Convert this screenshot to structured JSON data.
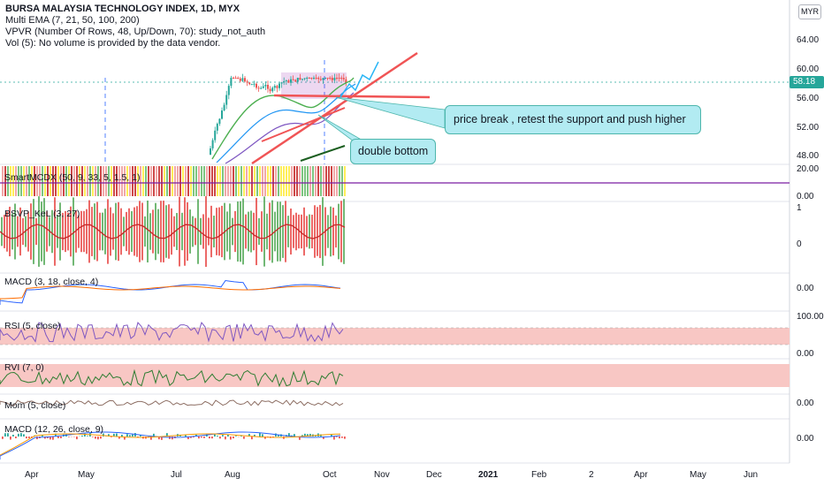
{
  "header": {
    "symbol_line": "BURSA MALAYSIA TECHNOLOGY INDEX, 1D, MYX",
    "indicators": [
      "Multi EMA (7, 21, 50, 100, 200)",
      "VPVR (Number Of Rows, 48, Up/Down, 70): study_not_auth",
      "Vol (5): No volume is provided by the data vendor."
    ]
  },
  "currency": "MYR",
  "last_price": "58.18",
  "price_axis": [
    "64.00",
    "60.00",
    "56.00",
    "52.00",
    "48.00"
  ],
  "panes": [
    {
      "name": "SmartMCDX (50, 9, 33, 5, 1.5, 1)",
      "axis": [
        "20.00",
        "0.00"
      ]
    },
    {
      "name": "BSVP_KeL (3, 27)",
      "axis": [
        "1",
        "0"
      ]
    },
    {
      "name": "MACD (3, 18, close, 4)",
      "axis": [
        "0.00"
      ]
    },
    {
      "name": "RSI (5, close)",
      "axis": [
        "100.00",
        "0.00"
      ]
    },
    {
      "name": "RVI (7, 0)",
      "axis": []
    },
    {
      "name": "Mom (5, close)",
      "axis": [
        "0.00"
      ]
    },
    {
      "name": "MACD (12, 26, close, 9)",
      "axis": [
        "0.00"
      ]
    }
  ],
  "time_axis": [
    "Apr",
    "May",
    "Jul",
    "Aug",
    "Oct",
    "Nov",
    "Dec",
    "2021",
    "Feb",
    "2",
    "Apr",
    "May",
    "Jun"
  ],
  "annotations": {
    "callout_break": "price break , retest the support and push higher",
    "callout_bottom": "double bottom"
  },
  "colors": {
    "up": "#26a69a",
    "down": "#ef5350",
    "trendline": "#f05455",
    "callout_bg": "#b2ebf2",
    "rsi_band": "#f8c7c4",
    "smart_line": "#7b1fa2"
  }
}
